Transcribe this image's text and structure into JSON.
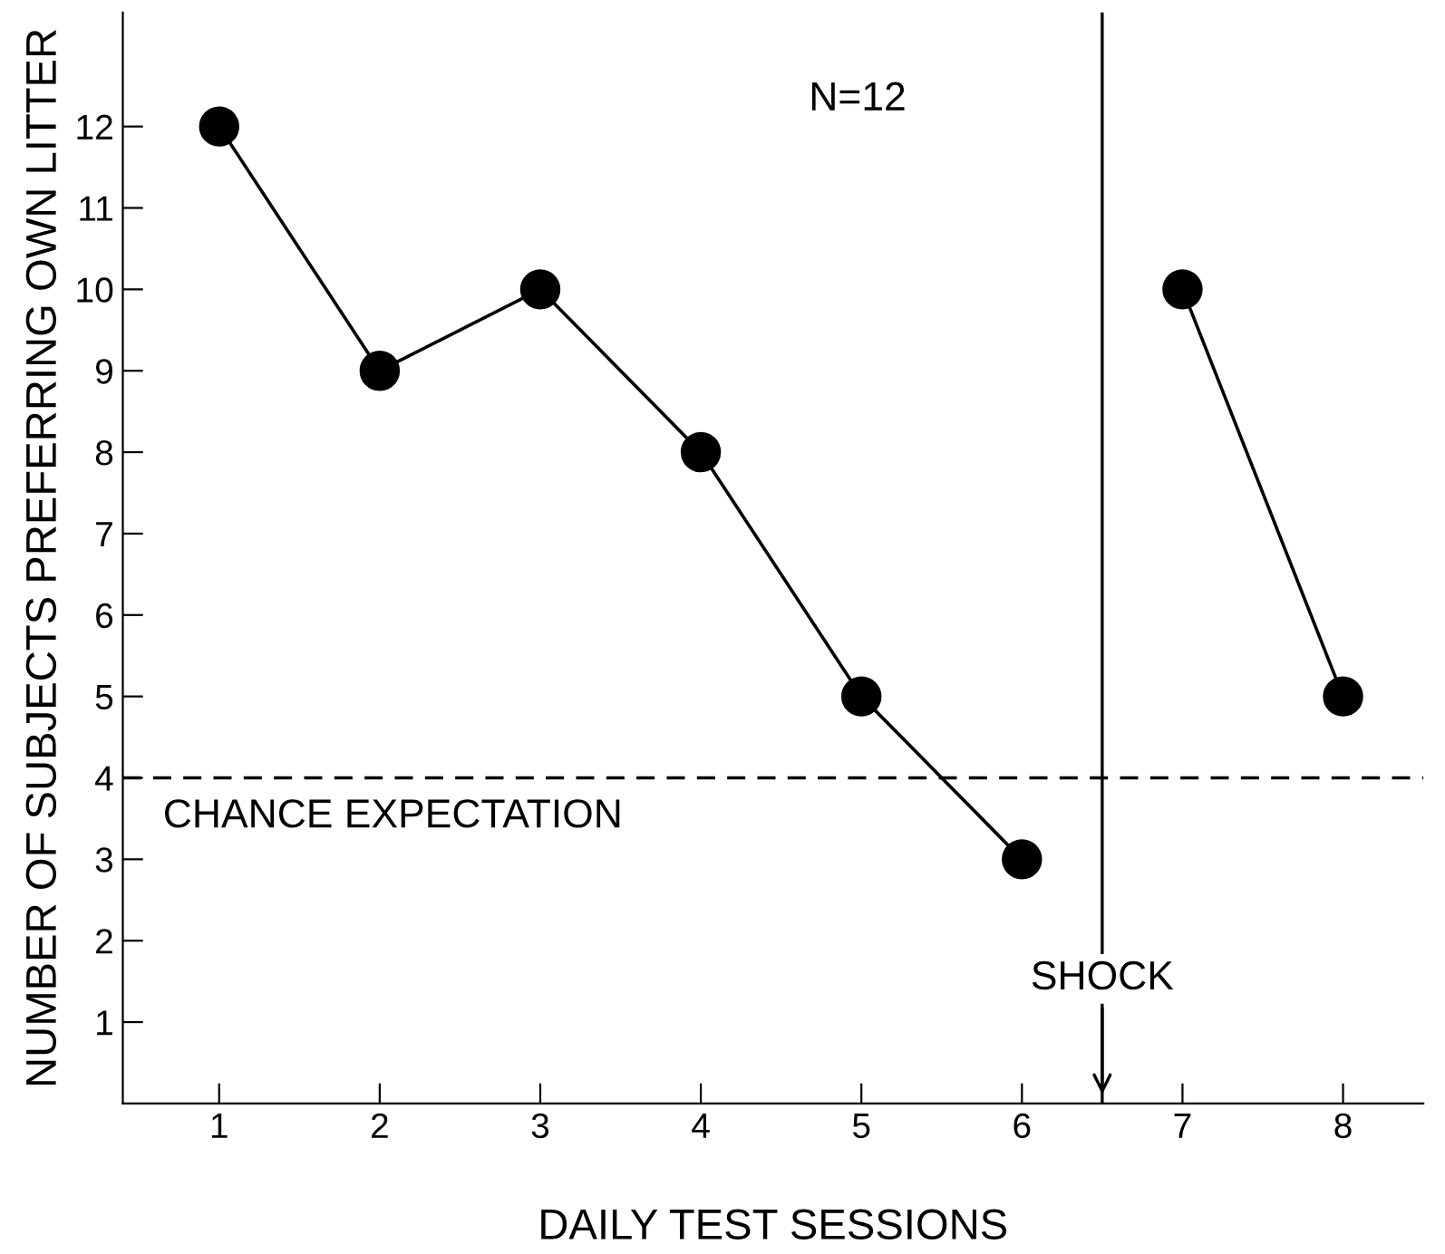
{
  "chart_data": {
    "type": "line",
    "xlabel": "DAILY TEST SESSIONS",
    "ylabel": "NUMBER OF SUBJECTS PREFERRING OWN LITTER",
    "series": [
      {
        "x": [
          1,
          2,
          3,
          4,
          5,
          6
        ],
        "values": [
          12,
          9,
          10,
          8,
          5,
          3
        ],
        "color": "#000000"
      },
      {
        "x": [
          7,
          8
        ],
        "values": [
          10,
          5
        ],
        "color": "#000000"
      }
    ],
    "xlim": [
      0.4,
      8.5
    ],
    "xticks": [
      1,
      2,
      3,
      4,
      5,
      6,
      7,
      8
    ],
    "ylim": [
      0,
      13.4
    ],
    "yticks": [
      1,
      2,
      3,
      4,
      5,
      6,
      7,
      8,
      9,
      10,
      11,
      12
    ],
    "ref_lines": [
      {
        "axis": "y",
        "value": 4,
        "label": "CHANCE EXPECTATION",
        "line_style": "dashed",
        "color": "#000000"
      },
      {
        "axis": "x",
        "value": 6.5,
        "label": "SHOCK",
        "line_style": "solid",
        "color": "#000000"
      }
    ],
    "annotations": [
      "N=12"
    ],
    "marker": "circle",
    "line_style": "solid",
    "grid": false,
    "legend": false
  }
}
